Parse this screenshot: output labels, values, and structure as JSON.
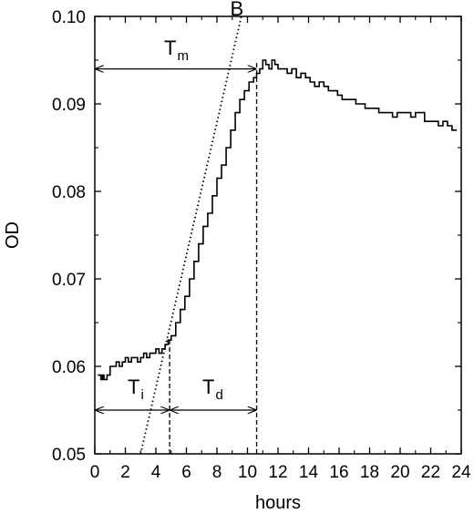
{
  "chart_data": {
    "type": "line",
    "xlabel": "hours",
    "ylabel": "OD",
    "xlim": [
      0,
      24
    ],
    "ylim": [
      0.05,
      0.1
    ],
    "x_ticks": [
      0,
      2,
      4,
      6,
      8,
      10,
      12,
      14,
      16,
      18,
      20,
      22,
      24
    ],
    "y_ticks": [
      0.05,
      0.06,
      0.07,
      0.08,
      0.09,
      0.1
    ],
    "x_tick_labels": [
      "0",
      "2",
      "4",
      "6",
      "8",
      "10",
      "12",
      "14",
      "16",
      "18",
      "20",
      "22",
      "24"
    ],
    "y_tick_labels": [
      "0.05",
      "0.06",
      "0.07",
      "0.08",
      "0.09",
      "0.10"
    ],
    "grid": false,
    "series": [
      {
        "style": "solid step",
        "x": [
          0.2,
          0.4,
          0.5,
          0.6,
          0.8,
          1.0,
          1.2,
          1.4,
          1.6,
          1.8,
          2.0,
          2.2,
          2.4,
          2.6,
          2.8,
          3.0,
          3.2,
          3.4,
          3.6,
          3.8,
          4.0,
          4.2,
          4.4,
          4.6,
          4.8,
          5.0,
          5.3,
          5.6,
          5.9,
          6.2,
          6.5,
          6.8,
          7.1,
          7.4,
          7.7,
          8.0,
          8.3,
          8.6,
          8.9,
          9.2,
          9.5,
          9.8,
          10.1,
          10.4,
          10.6,
          10.8,
          11.0,
          11.2,
          11.4,
          11.6,
          11.8,
          12.0,
          12.3,
          12.6,
          12.9,
          13.2,
          13.5,
          13.8,
          14.1,
          14.4,
          14.7,
          15.0,
          15.3,
          15.6,
          15.9,
          16.2,
          16.5,
          16.8,
          17.1,
          17.4,
          17.7,
          18.0,
          18.3,
          18.6,
          18.9,
          19.2,
          19.5,
          19.8,
          20.1,
          20.4,
          20.7,
          21.0,
          21.3,
          21.6,
          21.9,
          22.2,
          22.5,
          22.8,
          23.1,
          23.4,
          23.7
        ],
        "y": [
          0.059,
          0.0585,
          0.059,
          0.0585,
          0.059,
          0.06,
          0.06,
          0.0605,
          0.06,
          0.0605,
          0.061,
          0.0605,
          0.061,
          0.061,
          0.0605,
          0.061,
          0.0615,
          0.061,
          0.0615,
          0.0615,
          0.062,
          0.0615,
          0.062,
          0.0625,
          0.063,
          0.0635,
          0.065,
          0.0665,
          0.068,
          0.07,
          0.072,
          0.074,
          0.076,
          0.0775,
          0.0795,
          0.0815,
          0.083,
          0.085,
          0.087,
          0.089,
          0.0905,
          0.0915,
          0.0925,
          0.093,
          0.0935,
          0.094,
          0.095,
          0.0945,
          0.094,
          0.095,
          0.0945,
          0.094,
          0.094,
          0.0935,
          0.094,
          0.093,
          0.0935,
          0.093,
          0.0925,
          0.092,
          0.0925,
          0.092,
          0.0915,
          0.0915,
          0.091,
          0.0905,
          0.0905,
          0.0905,
          0.09,
          0.09,
          0.0895,
          0.0895,
          0.0895,
          0.089,
          0.089,
          0.089,
          0.0885,
          0.089,
          0.089,
          0.089,
          0.0885,
          0.089,
          0.089,
          0.088,
          0.088,
          0.088,
          0.0875,
          0.088,
          0.0875,
          0.087,
          0.087
        ]
      },
      {
        "style": "dotted tangent line",
        "x": [
          3.0,
          9.6
        ],
        "y": [
          0.05,
          0.1
        ]
      }
    ],
    "annotations": {
      "tangent_label": "B",
      "tm": {
        "main": "T",
        "sub": "m",
        "x_from": 0,
        "x_to": 10.6,
        "y": 0.094
      },
      "ti": {
        "main": "T",
        "sub": "i",
        "x_from": 0,
        "x_to": 4.9,
        "y": 0.055
      },
      "td": {
        "main": "T",
        "sub": "d",
        "x_from": 4.9,
        "x_to": 10.6,
        "y": 0.055
      },
      "vline_1": {
        "x": 4.9,
        "y_from": 0.05,
        "y_to": 0.063
      },
      "vline_2": {
        "x": 10.6,
        "y_from": 0.05,
        "y_to": 0.095
      }
    }
  }
}
